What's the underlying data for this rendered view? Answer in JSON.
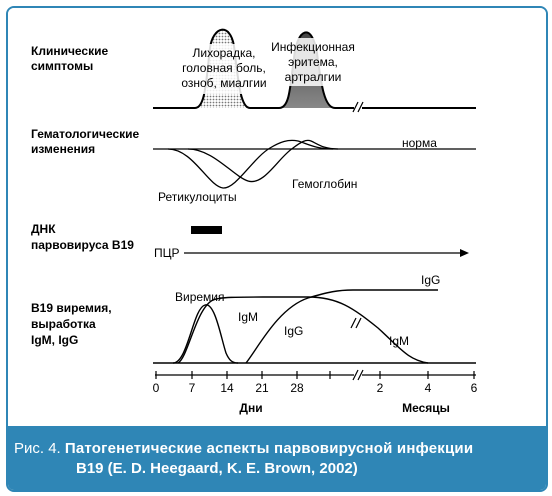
{
  "sections": {
    "clinical": [
      "Клинические",
      "симптомы"
    ],
    "hematological": [
      "Гематологические",
      "изменения"
    ],
    "dna": [
      "ДНК",
      "парвовируса В19"
    ],
    "viremia": [
      "В19 виремия,",
      "выработка",
      "IgM, IgG"
    ]
  },
  "clinical_labels": {
    "fever": [
      "Лихорадка,",
      "головная боль,",
      "озноб, миалгии"
    ],
    "erythema": [
      "Инфекционная",
      "эритема,",
      "артралгии"
    ]
  },
  "hematology_labels": {
    "norm": "норма",
    "reticulocytes": "Ретикулоциты",
    "hemoglobin": "Гемоглобин"
  },
  "dna_labels": {
    "pcr": "ПЦР"
  },
  "viremia_labels": {
    "viremia": "Виремия",
    "igm_rise": "IgM",
    "igg_rise": "IgG",
    "igg_plateau": "IgG",
    "igm_fall": "IgM"
  },
  "axis": {
    "ticks": [
      "0",
      "7",
      "14",
      "21",
      "28",
      "2",
      "4",
      "6"
    ],
    "days_label": "Дни",
    "months_label": "Месяцы"
  },
  "caption": {
    "prefix": "Рис. 4.",
    "title": "Патогенетические аспекты парвовирусной инфекции",
    "line2": "В19 (E. D. Heegaard, K. E. Brown, 2002)"
  },
  "colors": {
    "frame": "#2f86b6",
    "caption_bg": "#2f86b6"
  }
}
